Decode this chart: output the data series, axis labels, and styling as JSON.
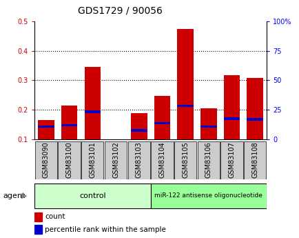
{
  "title": "GDS1729 / 90056",
  "samples": [
    "GSM83090",
    "GSM83100",
    "GSM83101",
    "GSM83102",
    "GSM83103",
    "GSM83104",
    "GSM83105",
    "GSM83106",
    "GSM83107",
    "GSM83108"
  ],
  "count_values": [
    0.165,
    0.215,
    0.345,
    0.095,
    0.188,
    0.247,
    0.474,
    0.204,
    0.318,
    0.308
  ],
  "percentile_values": [
    0.143,
    0.148,
    0.193,
    0.093,
    0.13,
    0.154,
    0.213,
    0.143,
    0.17,
    0.168
  ],
  "count_color": "#cc0000",
  "percentile_color": "#0000cc",
  "bar_width": 0.7,
  "ylim_left": [
    0.1,
    0.5
  ],
  "ylim_right": [
    0.0,
    100.0
  ],
  "yticks_left": [
    0.1,
    0.2,
    0.3,
    0.4,
    0.5
  ],
  "yticks_right": [
    0,
    25,
    50,
    75,
    100
  ],
  "ytick_labels_left": [
    "0.1",
    "0.2",
    "0.3",
    "0.4",
    "0.5"
  ],
  "ytick_labels_right": [
    "0",
    "25",
    "50",
    "75",
    "100%"
  ],
  "grid_yticks": [
    0.2,
    0.3,
    0.4
  ],
  "n_control": 5,
  "n_treatment": 5,
  "control_label": "control",
  "treatment_label": "miR-122 antisense oligonucleotide",
  "agent_label": "agent",
  "legend_count": "count",
  "legend_percentile": "percentile rank within the sample",
  "control_color": "#ccffcc",
  "treatment_color": "#99ff99",
  "tick_area_color": "#cccccc",
  "title_fontsize": 10,
  "tick_fontsize": 7,
  "label_fontsize": 8,
  "legend_fontsize": 7.5
}
